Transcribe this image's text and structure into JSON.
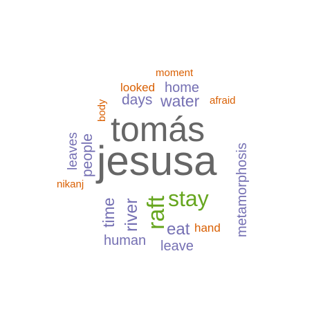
{
  "colors": {
    "large": "#666666",
    "green": "#66a61e",
    "purple": "#7570b3",
    "orange": "#d95f02"
  },
  "words": {
    "tomas": "tomás",
    "jesusa": "jesusa",
    "raft": "raft",
    "stay": "stay",
    "metamorphosis": "metamorphosis",
    "water": "water",
    "people": "people",
    "river": "river",
    "home": "home",
    "days": "days",
    "leaves": "leaves",
    "time": "time",
    "eat": "eat",
    "human": "human",
    "leave": "leave",
    "moment": "moment",
    "looked": "looked",
    "afraid": "afraid",
    "body": "body",
    "nikanj": "nikanj",
    "hand": "hand"
  }
}
